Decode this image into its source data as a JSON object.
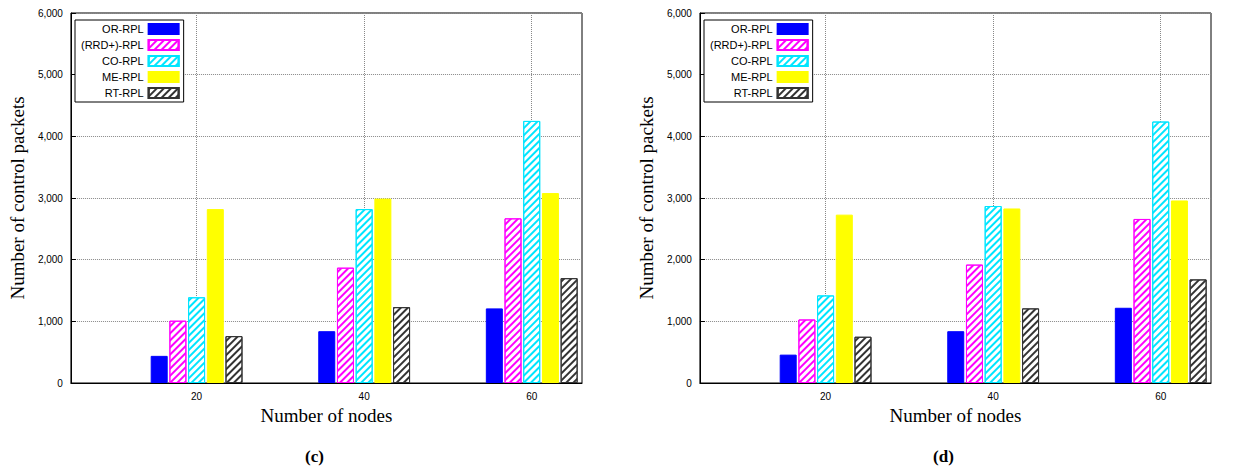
{
  "chart_data": [
    {
      "type": "bar",
      "title": "(c)",
      "x_label": "Number of nodes",
      "y_label": "Number of control packets",
      "x": [
        20,
        40,
        60
      ],
      "xlim": [
        5,
        66
      ],
      "xticks": [
        20,
        40,
        60
      ],
      "ylim": [
        0,
        6000
      ],
      "yticks": [
        0,
        1000,
        2000,
        3000,
        4000,
        5000,
        6000
      ],
      "grid": true,
      "legend": "upper left",
      "series": [
        {
          "name": "OR-RPL",
          "color": "#0000ff",
          "values": [
            440,
            840,
            1210
          ]
        },
        {
          "name": "(RRD+)-RPL",
          "color": "#ff00ff",
          "values": [
            1010,
            1870,
            2670
          ]
        },
        {
          "name": "CO-RPL",
          "color": "#00e5ff",
          "values": [
            1390,
            2820,
            4250
          ]
        },
        {
          "name": "ME-RPL",
          "color": "#ffff00",
          "values": [
            2820,
            2990,
            3080
          ]
        },
        {
          "name": "RT-RPL",
          "color": "#333333",
          "values": [
            760,
            1230,
            1700
          ]
        }
      ]
    },
    {
      "type": "bar",
      "title": "(d)",
      "x_label": "Number of nodes",
      "y_label": "Number of control packets",
      "x": [
        20,
        40,
        60
      ],
      "xlim": [
        5,
        66
      ],
      "xticks": [
        20,
        40,
        60
      ],
      "ylim": [
        0,
        6000
      ],
      "yticks": [
        0,
        1000,
        2000,
        3000,
        4000,
        5000,
        6000
      ],
      "grid": true,
      "legend": "upper left",
      "series": [
        {
          "name": "OR-RPL",
          "color": "#0000ff",
          "values": [
            460,
            840,
            1220
          ]
        },
        {
          "name": "(RRD+)-RPL",
          "color": "#ff00ff",
          "values": [
            1030,
            1920,
            2660
          ]
        },
        {
          "name": "CO-RPL",
          "color": "#00e5ff",
          "values": [
            1420,
            2870,
            4240
          ]
        },
        {
          "name": "ME-RPL",
          "color": "#ffff00",
          "values": [
            2730,
            2830,
            2960
          ]
        },
        {
          "name": "RT-RPL",
          "color": "#333333",
          "values": [
            750,
            1210,
            1680
          ]
        }
      ]
    }
  ]
}
